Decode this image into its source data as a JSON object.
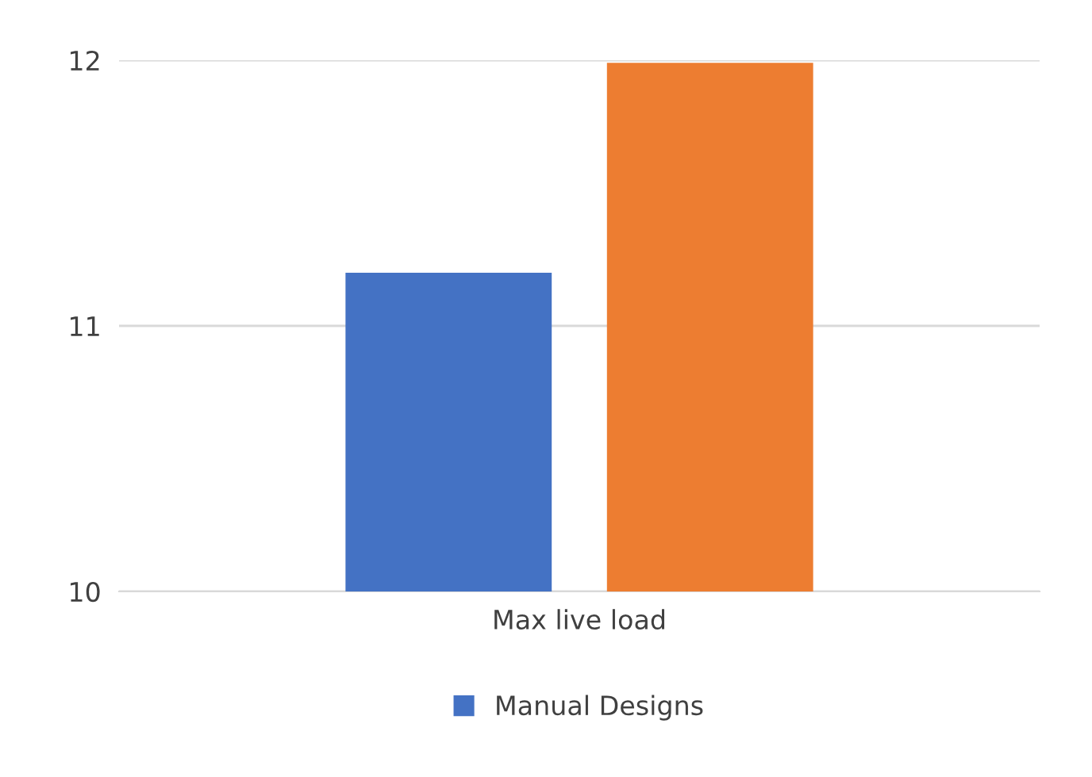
{
  "chart_data": {
    "type": "bar",
    "categories": [
      "Max live load"
    ],
    "series": [
      {
        "name": "Manual Designs",
        "color": "#4472c4",
        "values": [
          11.2
        ]
      },
      {
        "color": "#ed7d31",
        "values": [
          11.99
        ]
      }
    ],
    "ylim": [
      10,
      12
    ],
    "yticks": [
      10,
      11,
      12
    ],
    "grid": "y",
    "legend": "bottom"
  }
}
